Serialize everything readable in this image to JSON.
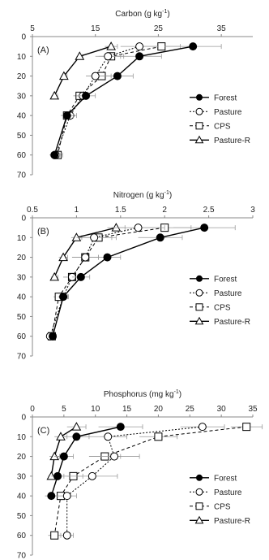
{
  "chart_data": [
    {
      "type": "line",
      "panel_label": "(A)",
      "title": "Carbon (g kg",
      "title_sup": "-1",
      "title_end": ")",
      "xlim": [
        5,
        40
      ],
      "xticks": [
        "5",
        "15",
        "25",
        "35"
      ],
      "xtick_values": [
        5,
        15,
        25,
        35
      ],
      "ylim": [
        0,
        70
      ],
      "yticks": [
        "0",
        "10",
        "20",
        "30",
        "40",
        "50",
        "60",
        "70"
      ],
      "ytick_values": [
        0,
        10,
        20,
        30,
        40,
        50,
        60,
        70
      ],
      "legend_position": "bottom-right",
      "series": [
        {
          "name": "Forest",
          "style": "solid",
          "marker": "circle-filled",
          "x": [
            30.5,
            22.0,
            18.5,
            13.5,
            10.5
          ],
          "y": [
            5,
            10,
            20,
            30,
            40
          ],
          "err": [
            4.5,
            3.5,
            2.5,
            1.5,
            1.0
          ],
          "x60": 8.5,
          "err60": 0.8
        },
        {
          "name": "Pasture",
          "style": "dotted",
          "marker": "circle-open",
          "x": [
            22.0,
            17.0,
            15.0,
            13.0,
            11.0
          ],
          "y": [
            5,
            10,
            20,
            30,
            40
          ],
          "err": [
            3.0,
            2.0,
            1.5,
            1.0,
            1.0
          ],
          "x60": 8.7,
          "err60": 0.8
        },
        {
          "name": "CPS",
          "style": "dashed",
          "marker": "square-open",
          "x": [
            25.5,
            17.5,
            16.0,
            12.5,
            10.5
          ],
          "y": [
            5,
            10,
            20,
            30,
            40
          ],
          "err": [
            3.0,
            2.0,
            1.5,
            1.0,
            1.0
          ],
          "x60": 9.0,
          "err60": 0.8
        },
        {
          "name": "Pasture-R",
          "style": "solid",
          "marker": "triangle-open",
          "x": [
            17.5,
            12.5,
            10.0,
            8.5
          ],
          "y": [
            5,
            10,
            20,
            30
          ],
          "err": [
            1.0,
            0.5,
            0.5,
            0.5
          ]
        }
      ]
    },
    {
      "type": "line",
      "panel_label": "(B)",
      "title": "Nitrogen (g kg",
      "title_sup": "-1",
      "title_end": ")",
      "xlim": [
        0.5,
        3.0
      ],
      "xticks": [
        "0.5",
        "1",
        "1.5",
        "2",
        "2.5",
        "3"
      ],
      "xtick_values": [
        0.5,
        1.0,
        1.5,
        2.0,
        2.5,
        3.0
      ],
      "ylim": [
        0,
        70
      ],
      "yticks": [
        "0",
        "10",
        "20",
        "30",
        "40",
        "50",
        "60",
        "70"
      ],
      "ytick_values": [
        0,
        10,
        20,
        30,
        40,
        50,
        60,
        70
      ],
      "legend_position": "bottom-right",
      "series": [
        {
          "name": "Forest",
          "style": "solid",
          "marker": "circle-filled",
          "x": [
            2.45,
            1.95,
            1.35,
            1.05,
            0.85,
            0.73
          ],
          "y": [
            5,
            10,
            20,
            30,
            40,
            60
          ],
          "err": [
            0.35,
            0.25,
            0.15,
            0.1,
            0.05,
            0.04
          ]
        },
        {
          "name": "Pasture",
          "style": "dotted",
          "marker": "circle-open",
          "x": [
            1.7,
            1.2,
            1.1,
            0.95,
            0.85,
            0.7
          ],
          "y": [
            5,
            10,
            20,
            30,
            40,
            60
          ],
          "err": [
            0.3,
            0.2,
            0.15,
            0.1,
            0.06,
            0.04
          ]
        },
        {
          "name": "CPS",
          "style": "dashed",
          "marker": "square-open",
          "x": [
            2.0,
            1.25,
            1.1,
            0.95,
            0.8,
            0.72
          ],
          "y": [
            5,
            10,
            20,
            30,
            40,
            60
          ],
          "err": [
            0.3,
            0.2,
            0.15,
            0.1,
            0.06,
            0.04
          ]
        },
        {
          "name": "Pasture-R",
          "style": "solid",
          "marker": "triangle-open",
          "x": [
            1.45,
            1.0,
            0.85,
            0.75
          ],
          "y": [
            5,
            10,
            20,
            30
          ],
          "err": [
            0.1,
            0.06,
            0.05,
            0.04
          ]
        }
      ]
    },
    {
      "type": "line",
      "panel_label": "(C)",
      "title": "Phosphorus (mg kg",
      "title_sup": "-1",
      "title_end": ")",
      "xlim": [
        0,
        35
      ],
      "xticks": [
        "0",
        "5",
        "10",
        "15",
        "20",
        "25",
        "30",
        "35"
      ],
      "xtick_values": [
        0,
        5,
        10,
        15,
        20,
        25,
        30,
        35
      ],
      "ylim": [
        0,
        70
      ],
      "yticks": [
        "0",
        "10",
        "20",
        "30",
        "40",
        "50",
        "60",
        "70"
      ],
      "ytick_values": [
        0,
        10,
        20,
        30,
        40,
        50,
        60,
        70
      ],
      "legend_position": "bottom-right",
      "series": [
        {
          "name": "Forest",
          "style": "solid",
          "marker": "circle-filled",
          "x": [
            14.0,
            7.0,
            5.0,
            4.0,
            3.0
          ],
          "y": [
            5,
            10,
            20,
            30,
            40
          ],
          "err": [
            3.5,
            2.0,
            1.5,
            1.0,
            1.0
          ]
        },
        {
          "name": "Pasture",
          "style": "dotted",
          "marker": "circle-open",
          "x": [
            27.0,
            12.0,
            13.0,
            9.5,
            5.5,
            5.5
          ],
          "y": [
            5,
            10,
            20,
            30,
            40,
            60
          ],
          "err": [
            3.5,
            3.0,
            4.0,
            4.0,
            1.5,
            1.0
          ]
        },
        {
          "name": "CPS",
          "style": "dashed",
          "marker": "square-open",
          "x": [
            34.0,
            20.0,
            11.5,
            6.5,
            4.5,
            3.5
          ],
          "y": [
            5,
            10,
            20,
            30,
            40,
            60
          ],
          "err": [
            2.5,
            3.0,
            2.5,
            1.5,
            1.0,
            1.0
          ]
        },
        {
          "name": "Pasture-R",
          "style": "solid",
          "marker": "triangle-open",
          "x": [
            7.0,
            4.5,
            3.5,
            3.0
          ],
          "y": [
            5,
            10,
            20,
            30
          ],
          "err": [
            1.5,
            1.0,
            0.8,
            0.5
          ]
        }
      ]
    }
  ]
}
